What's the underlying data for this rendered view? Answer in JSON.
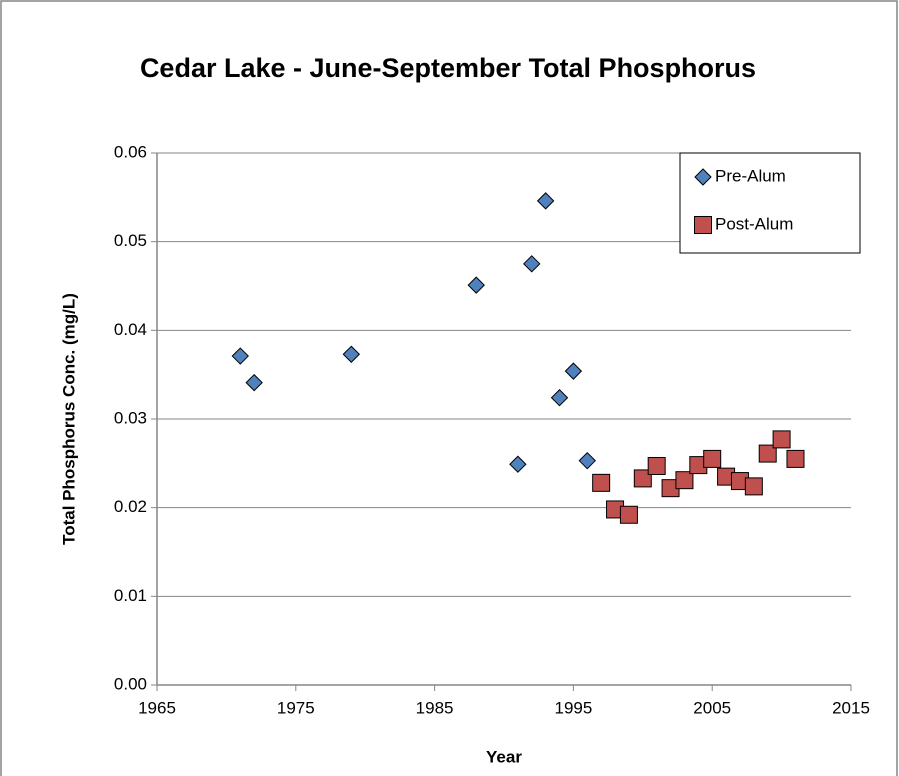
{
  "chart_data": {
    "type": "scatter",
    "title": "Cedar Lake - June-September Total Phosphorus",
    "xlabel": "Year",
    "ylabel": "Total Phosphorus Conc. (mg/L)",
    "xlim": [
      1965,
      2015
    ],
    "xticks": [
      1965,
      1975,
      1985,
      1995,
      2005,
      2015
    ],
    "ylim": [
      0,
      0.06
    ],
    "yticks": [
      {
        "value": 0,
        "label": "0.00"
      },
      {
        "value": 0.01,
        "label": "0.01"
      },
      {
        "value": 0.02,
        "label": "0.02"
      },
      {
        "value": 0.03,
        "label": "0.03"
      },
      {
        "value": 0.04,
        "label": "0.04"
      },
      {
        "value": 0.05,
        "label": "0.05"
      },
      {
        "value": 0.06,
        "label": "0.06"
      }
    ],
    "grid": true,
    "legend": "upper right",
    "series": [
      {
        "name": "Pre-Alum",
        "color": "#4f81bd",
        "marker": "diamond",
        "x": [
          1971,
          1972,
          1979,
          1988,
          1991,
          1992,
          1993,
          1994,
          1995,
          1996
        ],
        "values": [
          0.0371,
          0.0341,
          0.0373,
          0.0451,
          0.0249,
          0.0475,
          0.0546,
          0.0324,
          0.0354,
          0.0253
        ]
      },
      {
        "name": "Post-Alum",
        "color": "#c0504d",
        "marker": "square",
        "x": [
          1997,
          1998,
          1999,
          2000,
          2001,
          2002,
          2003,
          2004,
          2005,
          2006,
          2007,
          2008,
          2009,
          2010,
          2011
        ],
        "values": [
          0.0228,
          0.0198,
          0.0192,
          0.0233,
          0.0247,
          0.0222,
          0.0231,
          0.0248,
          0.0255,
          0.0235,
          0.023,
          0.0224,
          0.0261,
          0.0277,
          0.0255
        ]
      }
    ]
  }
}
